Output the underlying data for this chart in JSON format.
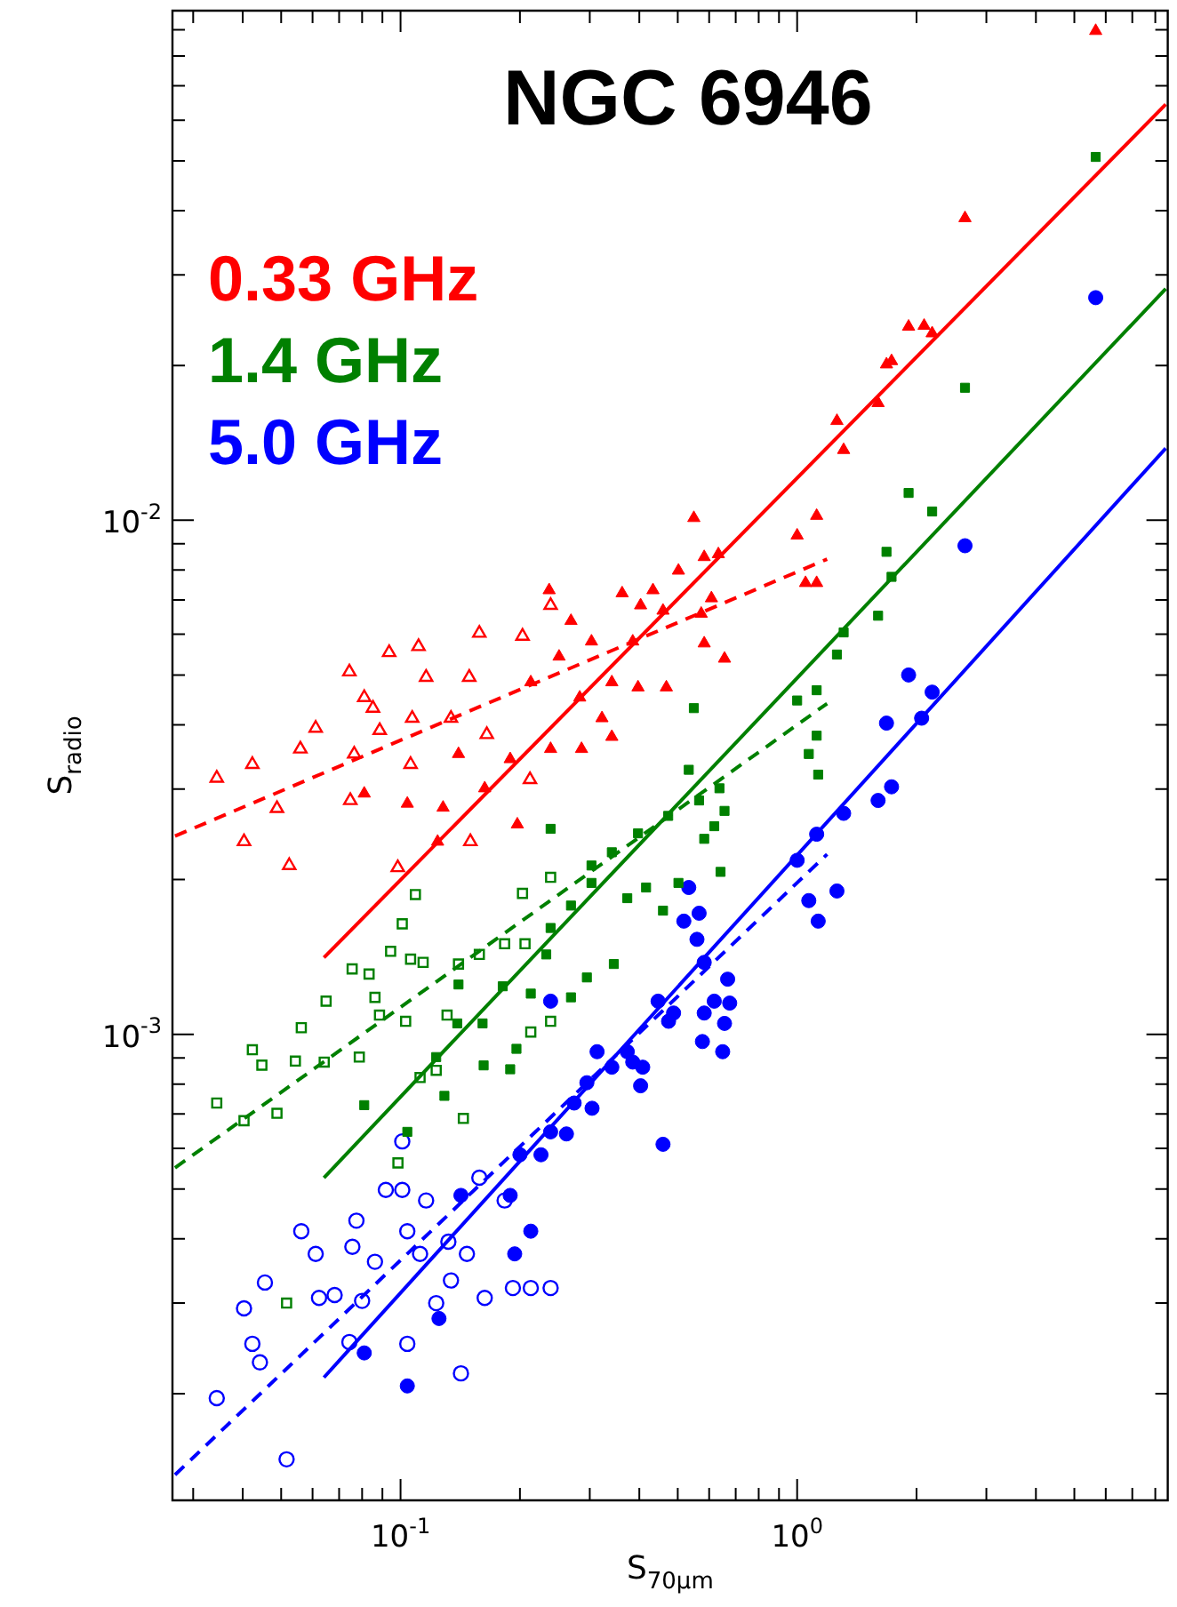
{
  "chart_data": {
    "type": "scatter",
    "title": "NGC 6946",
    "xlabel": "S$_{70μm}$",
    "ylabel": "S$_{radio}$",
    "log": "xy",
    "grid": false,
    "legend": "top left",
    "xlim": [
      0.0266,
      8.6
    ],
    "ylim": [
      0.000124,
      0.098
    ],
    "xticks": [
      {
        "value": 0.03,
        "label": null
      },
      {
        "value": 0.04,
        "label": null
      },
      {
        "value": 0.05,
        "label": null
      },
      {
        "value": 0.06,
        "label": null
      },
      {
        "value": 0.07,
        "label": null
      },
      {
        "value": 0.08,
        "label": null
      },
      {
        "value": 0.09,
        "label": null
      },
      {
        "value": 0.1,
        "label": "10$^{-1}$"
      },
      {
        "value": 0.2,
        "label": null
      },
      {
        "value": 0.3,
        "label": null
      },
      {
        "value": 0.4,
        "label": null
      },
      {
        "value": 0.5,
        "label": null
      },
      {
        "value": 0.6,
        "label": null
      },
      {
        "value": 0.7,
        "label": null
      },
      {
        "value": 0.8,
        "label": null
      },
      {
        "value": 0.9,
        "label": null
      },
      {
        "value": 1,
        "label": "10$^{0}$"
      },
      {
        "value": 2,
        "label": null
      },
      {
        "value": 3,
        "label": null
      },
      {
        "value": 4,
        "label": null
      },
      {
        "value": 5,
        "label": null
      },
      {
        "value": 6,
        "label": null
      },
      {
        "value": 7,
        "label": null
      },
      {
        "value": 8,
        "label": null
      }
    ],
    "yticks": [
      {
        "value": 0.0002,
        "label": null
      },
      {
        "value": 0.0003,
        "label": null
      },
      {
        "value": 0.0004,
        "label": null
      },
      {
        "value": 0.0005,
        "label": null
      },
      {
        "value": 0.0006,
        "label": null
      },
      {
        "value": 0.0007,
        "label": null
      },
      {
        "value": 0.0008,
        "label": null
      },
      {
        "value": 0.0009,
        "label": null
      },
      {
        "value": 0.001,
        "label": "10$^{-3}$"
      },
      {
        "value": 0.002,
        "label": null
      },
      {
        "value": 0.003,
        "label": null
      },
      {
        "value": 0.004,
        "label": null
      },
      {
        "value": 0.005,
        "label": null
      },
      {
        "value": 0.006,
        "label": null
      },
      {
        "value": 0.007,
        "label": null
      },
      {
        "value": 0.008,
        "label": null
      },
      {
        "value": 0.009,
        "label": null
      },
      {
        "value": 0.01,
        "label": "10$^{-2}$"
      },
      {
        "value": 0.02,
        "label": null
      },
      {
        "value": 0.03,
        "label": null
      },
      {
        "value": 0.04,
        "label": null
      },
      {
        "value": 0.05,
        "label": null
      },
      {
        "value": 0.06,
        "label": null
      },
      {
        "value": 0.07,
        "label": null
      },
      {
        "value": 0.08,
        "label": null
      },
      {
        "value": 0.09,
        "label": null
      }
    ],
    "series": [
      {
        "name": "0.33 GHz",
        "color": "#ff0000",
        "marker": "triangle",
        "x": [
          5.66,
          2.65,
          1.91,
          2.09,
          2.19,
          1.73,
          1.68,
          1.6,
          1.26,
          1.31,
          1.12,
          1.0,
          1.05,
          1.12,
          0.549,
          0.583,
          0.502,
          0.633,
          0.433,
          0.362,
          0.403,
          0.459,
          0.608,
          0.573,
          0.269,
          0.303,
          0.385,
          0.251,
          0.341,
          0.397,
          0.468,
          0.583,
          0.656,
          0.237,
          0.213,
          0.283,
          0.322,
          0.341,
          0.286,
          0.239,
          0.189,
          0.14,
          0.163,
          0.104,
          0.128,
          0.081,
          0.197,
          0.124
        ],
        "values": [
          0.0895,
          0.0387,
          0.0238,
          0.0239,
          0.0231,
          0.0204,
          0.0201,
          0.0169,
          0.0156,
          0.0137,
          0.0102,
          0.00934,
          0.00755,
          0.00755,
          0.0101,
          0.00848,
          0.00798,
          0.00859,
          0.00731,
          0.00721,
          0.00683,
          0.00667,
          0.00705,
          0.00658,
          0.00637,
          0.00581,
          0.00581,
          0.00543,
          0.00484,
          0.00473,
          0.00473,
          0.00576,
          0.00538,
          0.00731,
          0.00484,
          0.00452,
          0.00412,
          0.00379,
          0.00359,
          0.00359,
          0.00343,
          0.00351,
          0.00301,
          0.00281,
          0.00276,
          0.00294,
          0.00256,
          0.00237
        ]
      },
      {
        "color": "#ff0000",
        "marker": "triangle",
        "x": [
          0.0344,
          0.0403,
          0.0423,
          0.0488,
          0.0524,
          0.0611,
          0.0559,
          0.0743,
          0.0764,
          0.0747,
          0.081,
          0.0852,
          0.0886,
          0.0936,
          0.111,
          0.107,
          0.106,
          0.116,
          0.134,
          0.149,
          0.158,
          0.165,
          0.203,
          0.212,
          0.239,
          0.15,
          0.0984
        ],
        "values": [
          0.00315,
          0.00237,
          0.00335,
          0.00275,
          0.00213,
          0.00394,
          0.00359,
          0.00507,
          0.00351,
          0.00285,
          0.00452,
          0.00431,
          0.0039,
          0.00553,
          0.00568,
          0.00412,
          0.00335,
          0.00495,
          0.00412,
          0.00495,
          0.00603,
          0.00383,
          0.00595,
          0.00313,
          0.00683,
          0.00237,
          0.00211
        ]
      },
      {
        "name": "1.4 GHz",
        "color": "#008000",
        "marker": "square",
        "x": [
          5.66,
          2.65,
          1.91,
          2.19,
          1.68,
          1.73,
          1.6,
          1.31,
          1.26,
          1.12,
          1.0,
          1.12,
          1.07,
          1.13,
          0.549,
          0.533,
          0.566,
          0.637,
          0.656,
          0.618,
          0.583,
          0.641,
          0.502,
          0.459,
          0.416,
          0.373,
          0.473,
          0.397,
          0.341,
          0.303,
          0.303,
          0.269,
          0.239,
          0.233,
          0.213,
          0.181,
          0.14,
          0.139,
          0.161,
          0.196,
          0.189,
          0.123,
          0.129,
          0.081,
          0.104,
          0.239,
          0.295,
          0.345,
          0.269,
          0.162
        ],
        "values": [
          0.0509,
          0.0181,
          0.0113,
          0.0104,
          0.00868,
          0.00776,
          0.00652,
          0.00605,
          0.00548,
          0.00467,
          0.00446,
          0.00381,
          0.00351,
          0.0032,
          0.00431,
          0.00327,
          0.00285,
          0.00301,
          0.00272,
          0.00254,
          0.0024,
          0.00207,
          0.00197,
          0.00174,
          0.00193,
          0.00184,
          0.00266,
          0.00246,
          0.00226,
          0.00197,
          0.00213,
          0.00178,
          0.00161,
          0.00143,
          0.0012,
          0.00124,
          0.00125,
          0.00105,
          0.00105,
          0.000937,
          0.000855,
          0.000903,
          0.000759,
          0.000728,
          0.000646,
          0.00251,
          0.00129,
          0.00137,
          0.00118,
          0.00087
        ]
      },
      {
        "color": "#008000",
        "marker": "square",
        "x": [
          0.0344,
          0.0403,
          0.0488,
          0.0423,
          0.0447,
          0.0543,
          0.0562,
          0.0649,
          0.0642,
          0.0755,
          0.0833,
          0.0862,
          0.0944,
          0.101,
          0.109,
          0.106,
          0.114,
          0.0787,
          0.0885,
          0.103,
          0.112,
          0.123,
          0.131,
          0.144,
          0.14,
          0.158,
          0.183,
          0.203,
          0.239,
          0.206,
          0.239,
          0.213,
          0.0985,
          0.0516
        ],
        "values": [
          0.000735,
          0.000679,
          0.000702,
          0.000933,
          0.000871,
          0.000887,
          0.00103,
          0.00116,
          0.000883,
          0.00134,
          0.00131,
          0.00118,
          0.00145,
          0.00164,
          0.00187,
          0.0014,
          0.00138,
          0.000903,
          0.00109,
          0.00106,
          0.000824,
          0.000851,
          0.00109,
          0.000686,
          0.00137,
          0.00143,
          0.0015,
          0.00188,
          0.00202,
          0.0015,
          0.00106,
          0.00101,
          0.000562,
          0.0003
        ]
      },
      {
        "name": "5.0 GHz",
        "color": "#0000ff",
        "marker": "circle",
        "x": [
          5.66,
          2.65,
          1.91,
          2.19,
          2.06,
          1.68,
          1.73,
          1.6,
          1.31,
          1.12,
          1.0,
          1.07,
          1.13,
          1.26,
          0.533,
          0.566,
          0.518,
          0.559,
          0.583,
          0.668,
          0.618,
          0.583,
          0.656,
          0.577,
          0.649,
          0.676,
          0.488,
          0.446,
          0.474,
          0.459,
          0.408,
          0.403,
          0.373,
          0.341,
          0.313,
          0.295,
          0.274,
          0.262,
          0.239,
          0.226,
          0.2,
          0.189,
          0.213,
          0.194,
          0.142,
          0.125,
          0.081,
          0.104,
          0.239,
          0.304,
          0.385
        ],
        "values": [
          0.0271,
          0.00892,
          0.005,
          0.00463,
          0.00412,
          0.00403,
          0.00303,
          0.00285,
          0.00269,
          0.00245,
          0.00218,
          0.00182,
          0.00166,
          0.0019,
          0.00193,
          0.00172,
          0.00166,
          0.00153,
          0.00138,
          0.00128,
          0.00116,
          0.0011,
          0.00105,
          0.000968,
          0.000925,
          0.00115,
          0.0011,
          0.00116,
          0.00106,
          0.000611,
          0.000863,
          0.000794,
          0.000925,
          0.000863,
          0.000925,
          0.000805,
          0.000735,
          0.00064,
          0.000646,
          0.000583,
          0.000583,
          0.000486,
          0.000414,
          0.000374,
          0.000486,
          0.00028,
          0.00024,
          0.000207,
          0.00116,
          0.000718,
          0.000883
        ]
      },
      {
        "color": "#0000ff",
        "marker": "circle",
        "x": [
          0.0344,
          0.0403,
          0.0423,
          0.0442,
          0.0455,
          0.0516,
          0.0562,
          0.0611,
          0.0623,
          0.0682,
          0.0743,
          0.0774,
          0.0756,
          0.08,
          0.0862,
          0.0918,
          0.101,
          0.104,
          0.104,
          0.112,
          0.116,
          0.123,
          0.132,
          0.134,
          0.142,
          0.147,
          0.158,
          0.163,
          0.183,
          0.192,
          0.213,
          0.239,
          0.101
        ],
        "values": [
          0.000196,
          0.000293,
          0.00025,
          0.00023,
          0.000329,
          0.000149,
          0.000414,
          0.000374,
          0.000307,
          0.000311,
          0.000252,
          0.000434,
          0.000386,
          0.000303,
          0.000361,
          0.000498,
          0.000498,
          0.000414,
          0.00025,
          0.000374,
          0.000475,
          0.0003,
          0.000395,
          0.000332,
          0.000219,
          0.000374,
          0.000526,
          0.000307,
          0.000475,
          0.000321,
          0.000321,
          0.000321,
          0.000619
        ]
      },
      {
        "type": "line",
        "line_style": "solid",
        "color": "#ff0000",
        "x": [
          0.0641,
          8.5
        ],
        "values": [
          0.00141,
          0.0644
        ]
      },
      {
        "type": "line",
        "line_style": "solid",
        "color": "#008000",
        "x": [
          0.0641,
          8.5
        ],
        "values": [
          0.000526,
          0.0282
        ]
      },
      {
        "type": "line",
        "line_style": "solid",
        "color": "#0000ff",
        "x": [
          0.0641,
          8.5
        ],
        "values": [
          0.000215,
          0.0138
        ]
      },
      {
        "type": "line",
        "line_style": "dashed",
        "color": "#ff0000",
        "x": [
          0.027,
          1.19
        ],
        "values": [
          0.00243,
          0.0084
        ]
      },
      {
        "type": "line",
        "line_style": "dashed",
        "color": "#008000",
        "x": [
          0.027,
          1.19
        ],
        "values": [
          0.00055,
          0.0044
        ]
      },
      {
        "type": "line",
        "line_style": "dashed",
        "color": "#0000ff",
        "x": [
          0.027,
          1.19
        ],
        "values": [
          0.000139,
          0.00224
        ]
      }
    ]
  }
}
